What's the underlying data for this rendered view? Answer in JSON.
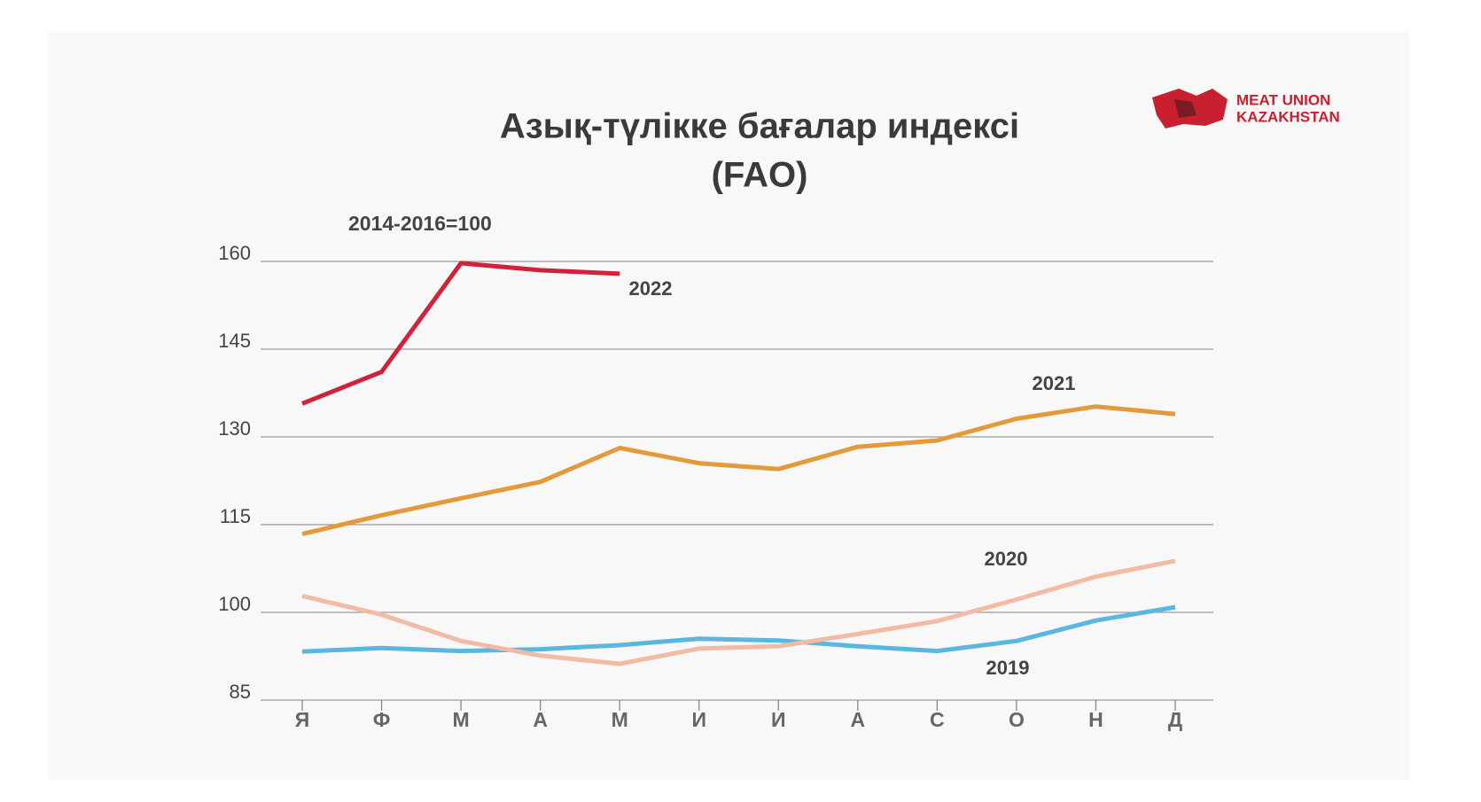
{
  "chart_data": {
    "type": "line",
    "title": [
      "Азық-түлікке бағалар индексі",
      "(FAO)"
    ],
    "subtitle": "2014-2016=100",
    "logo": [
      "MEAT UNION",
      "KAZAKHSTAN"
    ],
    "categories": [
      "Я",
      "Ф",
      "М",
      "А",
      "М",
      "И",
      "И",
      "А",
      "С",
      "О",
      "Н",
      "Д"
    ],
    "series": [
      {
        "name": "2022",
        "color": "#d0223a",
        "values": [
          135.7,
          141.1,
          159.7,
          158.5,
          157.9,
          null,
          null,
          null,
          null,
          null,
          null,
          null
        ]
      },
      {
        "name": "2021",
        "color": "#e39a3b",
        "values": [
          113.4,
          116.6,
          119.5,
          122.3,
          128.1,
          125.5,
          124.5,
          128.3,
          129.4,
          133.1,
          135.2,
          133.9
        ]
      },
      {
        "name": "2020",
        "color": "#f2bba5",
        "values": [
          102.8,
          99.6,
          95.1,
          92.6,
          91.2,
          93.8,
          94.2,
          96.3,
          98.5,
          102.2,
          106.1,
          108.8
        ]
      },
      {
        "name": "2019",
        "color": "#5ab8e0",
        "values": [
          93.3,
          93.9,
          93.4,
          93.7,
          94.4,
          95.5,
          95.2,
          94.2,
          93.4,
          95.1,
          98.6,
          100.9
        ]
      }
    ],
    "ylim": [
      85,
      160
    ],
    "yticks": [
      85,
      100,
      115,
      130,
      145,
      160
    ],
    "grid": true
  }
}
